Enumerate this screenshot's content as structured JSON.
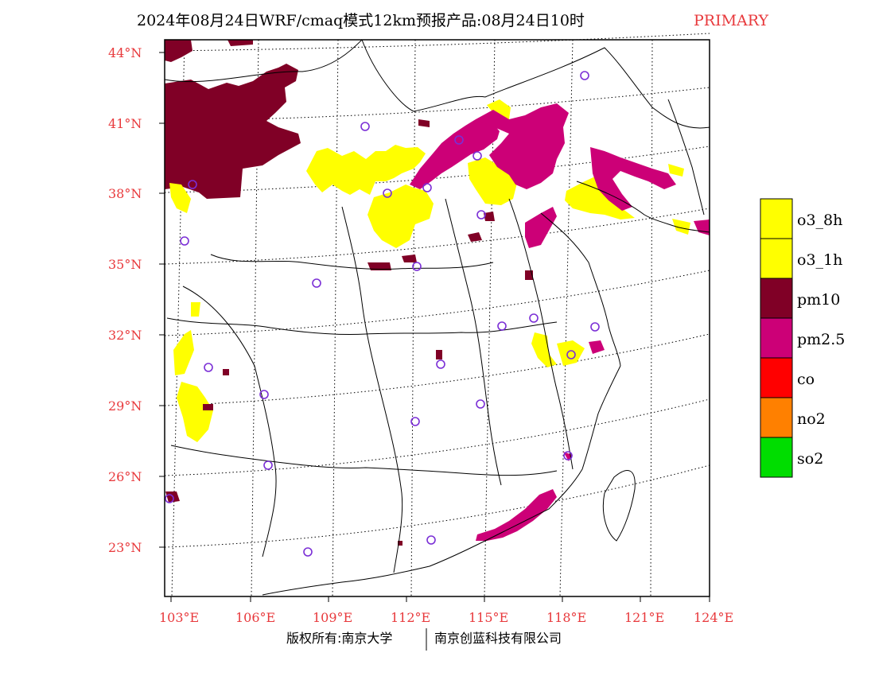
{
  "title": {
    "main": "2024年08月24日WRF/cmaq模式12km预报产品:08月24日10时",
    "tag": "PRIMARY"
  },
  "axes": {
    "lon_labels": [
      "103°E",
      "106°E",
      "109°E",
      "112°E",
      "115°E",
      "118°E",
      "121°E",
      "124°E"
    ],
    "lat_labels": [
      "44°N",
      "41°N",
      "38°N",
      "35°N",
      "32°N",
      "29°N",
      "26°N",
      "23°N"
    ]
  },
  "legend": {
    "items": [
      {
        "label": "o3_8h",
        "color": "#ffff00"
      },
      {
        "label": "o3_1h",
        "color": "#ffff00"
      },
      {
        "label": "pm10",
        "color": "#800026"
      },
      {
        "label": "pm2.5",
        "color": "#cc0077"
      },
      {
        "label": "co",
        "color": "#ff0000"
      },
      {
        "label": "no2",
        "color": "#ff8000"
      },
      {
        "label": "so2",
        "color": "#00dd00"
      }
    ]
  },
  "footer": {
    "left": "版权所有:南京大学",
    "right": "南京创蓝科技有限公司"
  },
  "colors": {
    "o3": "#ffff00",
    "pm10": "#800026",
    "pm25": "#cc0077",
    "station_marker": "#7b2fd6",
    "label_red": "#e8393c"
  }
}
